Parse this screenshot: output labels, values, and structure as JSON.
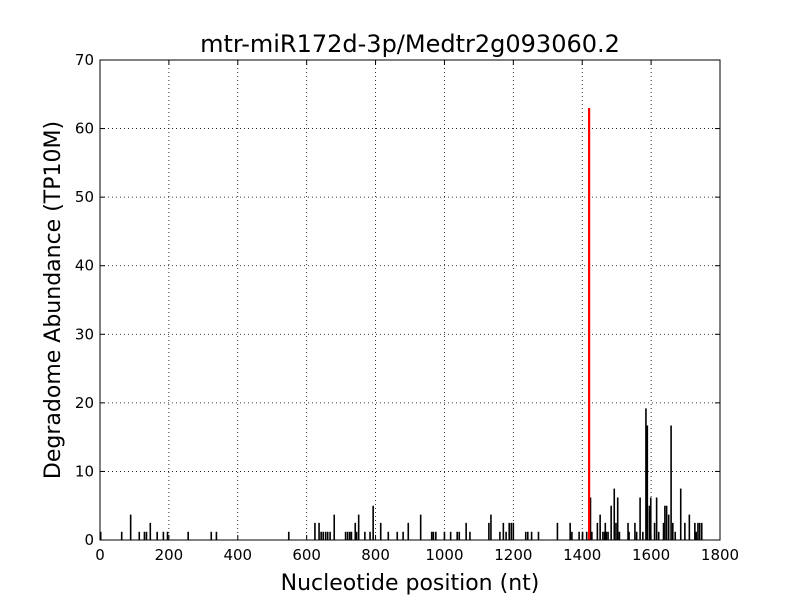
{
  "chart_data": {
    "type": "bar",
    "title": "mtr-miR172d-3p/Medtr2g093060.2",
    "xlabel": "Nucleotide position (nt)",
    "ylabel": "Degradome Abundance (TP10M)",
    "xlim": [
      0,
      1800
    ],
    "ylim": [
      0,
      70
    ],
    "xticks": [
      0,
      200,
      400,
      600,
      800,
      1000,
      1200,
      1400,
      1600,
      1800
    ],
    "yticks": [
      0,
      10,
      20,
      30,
      40,
      50,
      60,
      70
    ],
    "grid": true,
    "colors": {
      "bars": "#000000",
      "target": "#ff0000"
    },
    "target_site": {
      "x": 1420,
      "y": 63
    },
    "series": [
      {
        "x": [
          2,
          63,
          89,
          114,
          129,
          135,
          146,
          166,
          184,
          196,
          256,
          323,
          338,
          548,
          624,
          636,
          642,
          648,
          655,
          661,
          668,
          680,
          713,
          719,
          725,
          730,
          741,
          745,
          751,
          769,
          784,
          793,
          815,
          837,
          863,
          880,
          895,
          931,
          963,
          968,
          975,
          1000,
          1018,
          1037,
          1043,
          1063,
          1074,
          1129,
          1135,
          1161,
          1171,
          1179,
          1188,
          1194,
          1200,
          1236,
          1242,
          1253,
          1273,
          1328,
          1365,
          1370,
          1391,
          1401,
          1413,
          1424,
          1428,
          1444,
          1452,
          1460,
          1465,
          1467,
          1470,
          1475,
          1484,
          1493,
          1498,
          1503,
          1508,
          1533,
          1536,
          1553,
          1558,
          1568,
          1576,
          1585,
          1589,
          1595,
          1599,
          1610,
          1616,
          1622,
          1636,
          1640,
          1645,
          1651,
          1658,
          1663,
          1670,
          1686,
          1698,
          1711,
          1727,
          1731,
          1736,
          1741,
          1747
        ],
        "y": [
          1.2,
          1.2,
          3.7,
          1.2,
          1.2,
          1.2,
          2.5,
          1.2,
          1.2,
          1.2,
          1.2,
          1.2,
          1.2,
          1.2,
          2.5,
          2.5,
          1.2,
          1.2,
          1.2,
          1.2,
          1.2,
          3.7,
          1.2,
          1.2,
          1.2,
          1.2,
          2.5,
          1.2,
          3.7,
          1.2,
          1.2,
          5.0,
          2.5,
          1.2,
          1.2,
          1.2,
          2.5,
          3.7,
          1.2,
          1.2,
          1.2,
          1.2,
          1.2,
          1.2,
          1.2,
          2.5,
          1.2,
          2.5,
          3.7,
          1.2,
          2.5,
          1.2,
          2.5,
          2.5,
          2.5,
          1.2,
          1.2,
          1.2,
          1.2,
          2.5,
          2.5,
          1.2,
          1.2,
          1.2,
          1.2,
          6.2,
          1.2,
          2.5,
          3.7,
          1.2,
          1.2,
          2.5,
          1.2,
          1.2,
          5.0,
          7.5,
          2.5,
          6.2,
          1.2,
          2.5,
          1.2,
          2.5,
          1.2,
          6.2,
          1.2,
          19.2,
          16.7,
          5.0,
          6.2,
          2.5,
          6.2,
          1.2,
          2.5,
          5.0,
          5.0,
          3.7,
          16.7,
          2.5,
          1.2,
          7.5,
          2.5,
          3.7,
          2.5,
          1.2,
          2.5,
          2.5,
          2.5
        ]
      }
    ]
  }
}
